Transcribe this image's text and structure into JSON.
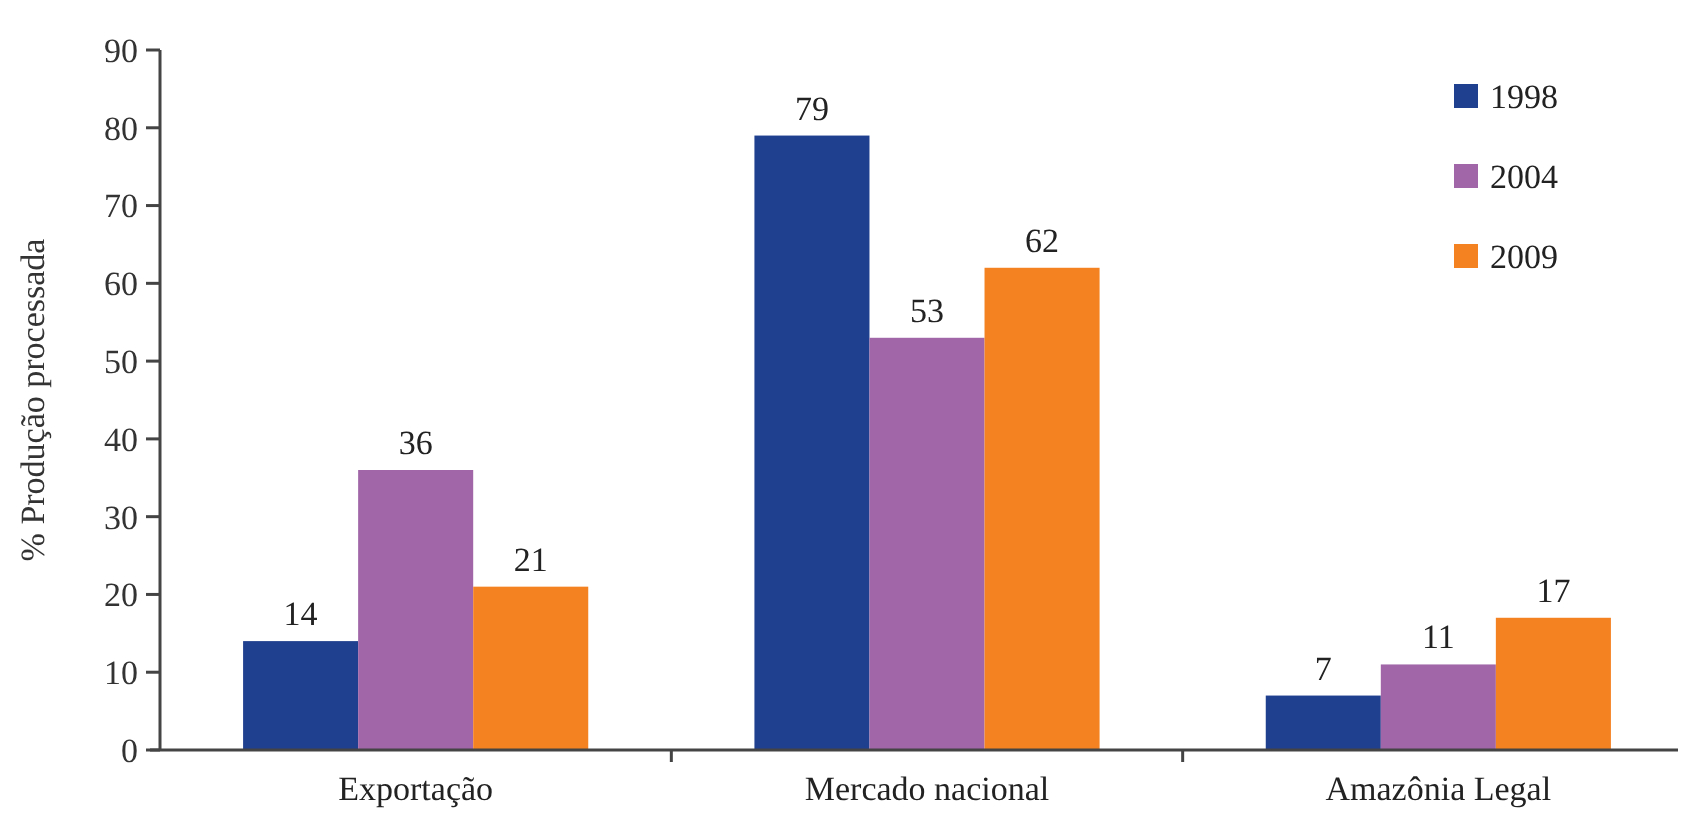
{
  "chart_data": {
    "type": "bar",
    "ylabel": "% Produção processada",
    "categories": [
      "Exportação",
      "Mercado nacional",
      "Amazônia Legal"
    ],
    "series": [
      {
        "name": "1998",
        "color": "#1f3f8f",
        "values": [
          14,
          79,
          7
        ]
      },
      {
        "name": "2004",
        "color": "#a066a8",
        "values": [
          36,
          53,
          11
        ]
      },
      {
        "name": "2009",
        "color": "#f58220",
        "values": [
          21,
          62,
          17
        ]
      }
    ],
    "ylim": [
      0,
      90
    ],
    "yticks": [
      0,
      10,
      20,
      30,
      40,
      50,
      60,
      70,
      80,
      90
    ],
    "grid": false,
    "legend": "top right",
    "data_labels": true
  }
}
